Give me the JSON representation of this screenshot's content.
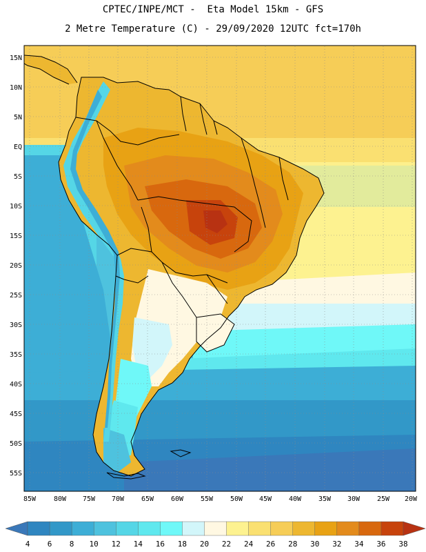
{
  "header": {
    "line1": "CPTEC/INPE/MCT -  Eta Model 15km - GFS",
    "line2": "2 Metre Temperature (C) - 29/09/2020 12UTC fct=170h"
  },
  "map": {
    "lat_labels": [
      "15N",
      "10N",
      "5N",
      "EQ",
      "5S",
      "10S",
      "15S",
      "20S",
      "25S",
      "30S",
      "35S",
      "40S",
      "45S",
      "50S",
      "55S"
    ],
    "lon_labels": [
      "85W",
      "80W",
      "75W",
      "70W",
      "65W",
      "60W",
      "55W",
      "50W",
      "45W",
      "40W",
      "35W",
      "30W",
      "25W",
      "20W"
    ]
  },
  "legend": {
    "levels": [
      "4",
      "6",
      "8",
      "10",
      "12",
      "14",
      "16",
      "18",
      "20",
      "22",
      "24",
      "26",
      "28",
      "30",
      "32",
      "34",
      "36",
      "38"
    ],
    "colors": [
      "#3a78b9",
      "#2f86c0",
      "#3298c8",
      "#3daed6",
      "#4ec2de",
      "#55d6e6",
      "#5fe8ee",
      "#6ff8f8",
      "#d2f6fa",
      "#fff8e2",
      "#fdf290",
      "#fae071",
      "#f6cd57",
      "#edb730",
      "#e8a214",
      "#e38b1c",
      "#d8680e",
      "#c7430c",
      "#b83212"
    ],
    "low_arrow_color": "#3a78b9",
    "high_arrow_color": "#b83212"
  }
}
